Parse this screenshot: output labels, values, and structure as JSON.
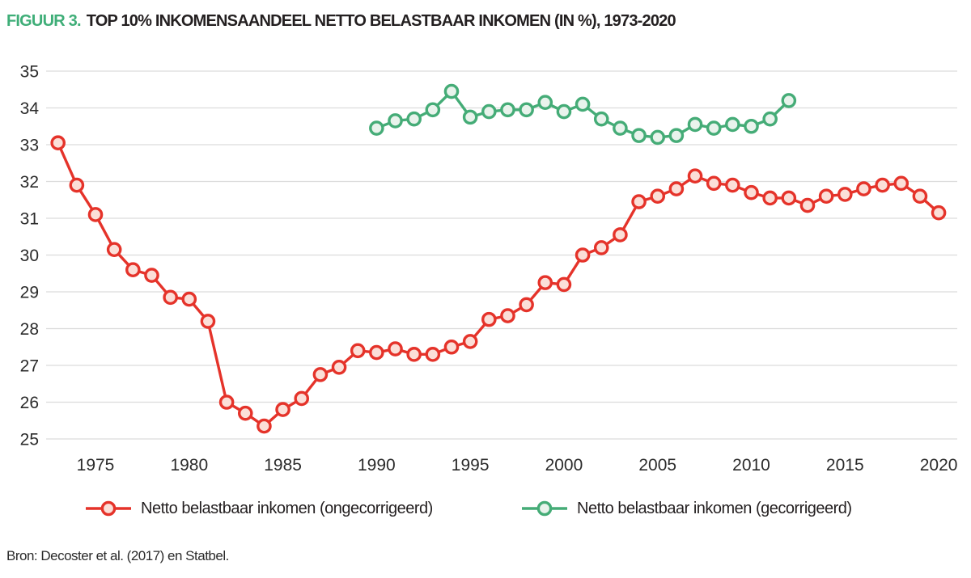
{
  "title": {
    "label": "FIGUUR 3.",
    "text": "TOP 10% INKOMENSAANDEEL NETTO BELASTBAAR INKOMEN (IN %), 1973-2020"
  },
  "source": "Bron: Decoster et al. (2017) en Statbel.",
  "colors": {
    "accent_green": "#3FAE78",
    "gridline": "#DCDCDC",
    "tick_text": "#2B2B2B",
    "text_dark": "#231F20"
  },
  "legend": {
    "items": [
      {
        "label": "Netto belastbaar inkomen (ongecorrigeerd)",
        "series": "ongecorrigeerd"
      },
      {
        "label": "Netto belastbaar inkomen (gecorrigeerd)",
        "series": "gecorrigeerd"
      }
    ]
  },
  "chart_data": {
    "type": "line",
    "title": "TOP 10% INKOMENSAANDEEL NETTO BELASTBAAR INKOMEN (IN %), 1973-2020",
    "xlabel": "",
    "ylabel": "",
    "ylim": [
      25,
      35
    ],
    "xlim": [
      1973,
      2020
    ],
    "y_ticks": [
      25,
      26,
      27,
      28,
      29,
      30,
      31,
      32,
      33,
      34,
      35
    ],
    "x_ticks": [
      1975,
      1980,
      1985,
      1990,
      1995,
      2000,
      2005,
      2010,
      2015,
      2020
    ],
    "grid": "horizontal",
    "legend_position": "bottom",
    "series": [
      {
        "name": "Netto belastbaar inkomen (ongecorrigeerd)",
        "id": "ongecorrigeerd",
        "stroke": "#E5332A",
        "marker_fill": "#FBDFD8",
        "x": [
          1973,
          1974,
          1975,
          1976,
          1977,
          1978,
          1979,
          1980,
          1981,
          1982,
          1983,
          1984,
          1985,
          1986,
          1987,
          1988,
          1989,
          1990,
          1991,
          1992,
          1993,
          1994,
          1995,
          1996,
          1997,
          1998,
          1999,
          2000,
          2001,
          2002,
          2003,
          2004,
          2005,
          2006,
          2007,
          2008,
          2009,
          2010,
          2011,
          2012,
          2013,
          2014,
          2015,
          2016,
          2017,
          2018,
          2019,
          2020
        ],
        "values": [
          33.05,
          31.9,
          31.1,
          30.15,
          29.6,
          29.45,
          28.85,
          28.8,
          28.2,
          26.0,
          25.7,
          25.35,
          25.8,
          26.1,
          26.75,
          26.95,
          27.4,
          27.35,
          27.45,
          27.3,
          27.3,
          27.5,
          27.65,
          28.25,
          28.35,
          28.65,
          29.25,
          29.2,
          30.0,
          30.2,
          30.55,
          31.45,
          31.6,
          31.8,
          32.15,
          31.95,
          31.9,
          31.7,
          31.55,
          31.55,
          31.35,
          31.6,
          31.65,
          31.8,
          31.9,
          31.95,
          31.6,
          31.15
        ]
      },
      {
        "name": "Netto belastbaar inkomen (gecorrigeerd)",
        "id": "gecorrigeerd",
        "stroke": "#45AC77",
        "marker_fill": "#E9F3EC",
        "x": [
          1990,
          1991,
          1992,
          1993,
          1994,
          1995,
          1996,
          1997,
          1998,
          1999,
          2000,
          2001,
          2002,
          2003,
          2004,
          2005,
          2006,
          2007,
          2008,
          2009,
          2010,
          2011,
          2012
        ],
        "values": [
          33.45,
          33.65,
          33.7,
          33.95,
          34.45,
          33.75,
          33.9,
          33.95,
          33.95,
          34.15,
          33.9,
          34.1,
          33.7,
          33.45,
          33.25,
          33.2,
          33.25,
          33.55,
          33.45,
          33.55,
          33.5,
          33.7,
          34.2
        ]
      }
    ]
  }
}
